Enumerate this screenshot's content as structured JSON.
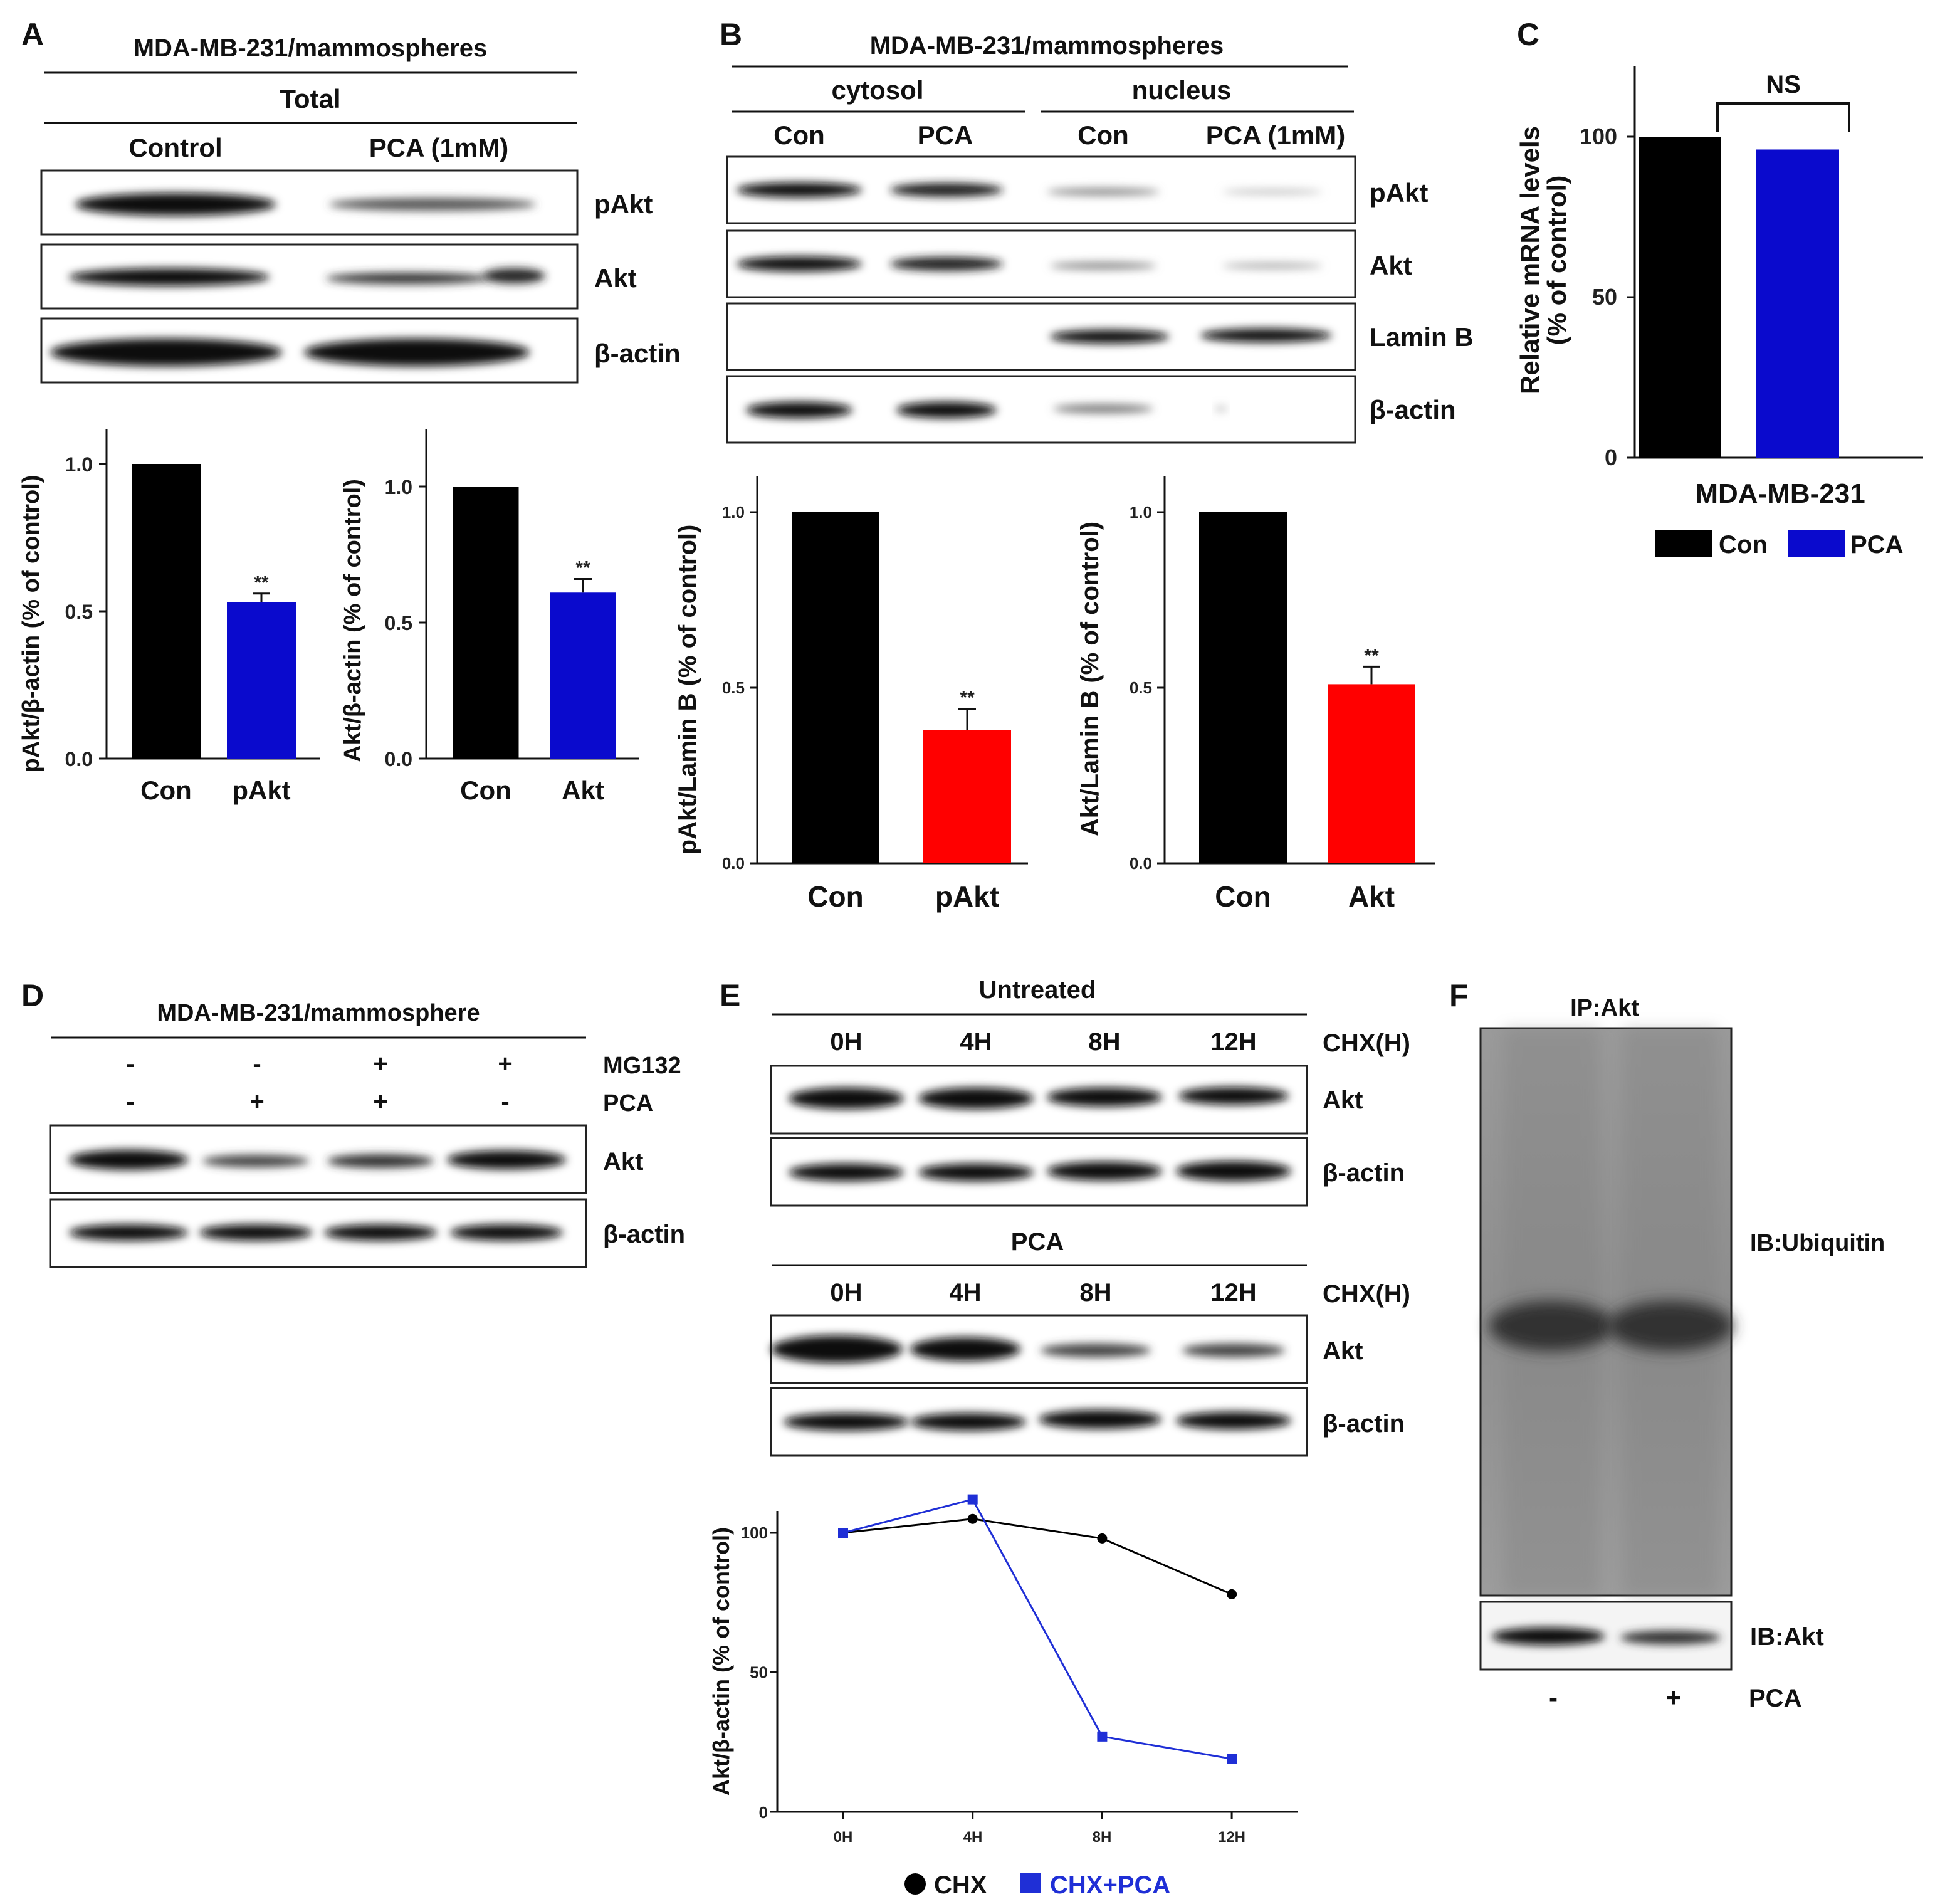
{
  "panel_letters": {
    "a": "A",
    "b": "B",
    "c": "C",
    "d": "D",
    "e": "E",
    "f": "F"
  },
  "colors": {
    "black": "#000000",
    "blue": "#0a0acd",
    "red": "#ff0000",
    "line_blue": "#1f2fd6"
  },
  "panelA": {
    "title": "MDA-MB-231/mammospheres",
    "subtitle": "Total",
    "lanes": [
      "Control",
      "PCA (1mM)"
    ],
    "blot_labels": [
      "pAkt",
      "Akt",
      "β-actin"
    ],
    "chart1": {
      "ylabel": "pAkt/β-actin (% of control)",
      "categories": [
        "Con",
        "pAkt"
      ],
      "yticks": [
        "0.0",
        "0.5",
        "1.0"
      ],
      "sig": "**"
    },
    "chart2": {
      "ylabel": "Akt/β-actin (% of control)",
      "categories": [
        "Con",
        "Akt"
      ],
      "yticks": [
        "0.0",
        "0.5",
        "1.0"
      ],
      "sig": "**"
    }
  },
  "panelB": {
    "title": "MDA-MB-231/mammospheres",
    "fractions": [
      "cytosol",
      "nucleus"
    ],
    "lanes": [
      "Con",
      "PCA",
      "Con",
      "PCA (1mM)"
    ],
    "blot_labels": [
      "pAkt",
      "Akt",
      "Lamin B",
      "β-actin"
    ],
    "chart1": {
      "ylabel": "pAkt/Lamin B (% of control)",
      "categories": [
        "Con",
        "pAkt"
      ],
      "yticks": [
        "0.0",
        "0.5",
        "1.0"
      ],
      "sig": "**"
    },
    "chart2": {
      "ylabel": "Akt/Lamin B (% of control)",
      "categories": [
        "Con",
        "Akt"
      ],
      "yticks": [
        "0.0",
        "0.5",
        "1.0"
      ],
      "sig": "**"
    }
  },
  "panelC": {
    "ylabel1": "Relative mRNA levels",
    "ylabel2": "(% of control)",
    "xlabel": "MDA-MB-231",
    "yticks": [
      "0",
      "50",
      "100"
    ],
    "sig": "NS",
    "legend": [
      "Con",
      "PCA"
    ]
  },
  "panelD": {
    "title": "MDA-MB-231/mammosphere",
    "row_labels": [
      "MG132",
      "PCA"
    ],
    "mg132": [
      "-",
      "-",
      "+",
      "+"
    ],
    "pca": [
      "-",
      "+",
      "+",
      "-"
    ],
    "blot_labels": [
      "Akt",
      "β-actin"
    ]
  },
  "panelE": {
    "group1": "Untreated",
    "group2": "PCA",
    "timepoints": [
      "0H",
      "4H",
      "8H",
      "12H"
    ],
    "chx_label": "CHX(H)",
    "blot_labels": [
      "Akt",
      "β-actin"
    ],
    "line": {
      "ylabel": "Akt/β-actin (% of control)",
      "yticks": [
        "0",
        "50",
        "100"
      ],
      "legend": [
        "CHX",
        "CHX+PCA"
      ]
    }
  },
  "panelF": {
    "ip_label": "IP:Akt",
    "ib1": "IB:Ubiquitin",
    "ib2": "IB:Akt",
    "signs": [
      "-",
      "+"
    ],
    "treat": "PCA"
  },
  "chart_data": [
    {
      "type": "bar",
      "categories": [
        "Con",
        "pAkt"
      ],
      "values": [
        1.0,
        0.53
      ],
      "errors": [
        0,
        0.03
      ],
      "ylabel": "pAkt/β-actin (% of control)",
      "ylim": [
        0,
        1.1
      ]
    },
    {
      "type": "bar",
      "categories": [
        "Con",
        "Akt"
      ],
      "values": [
        1.0,
        0.61
      ],
      "errors": [
        0,
        0.05
      ],
      "ylabel": "Akt/β-actin (% of control)",
      "ylim": [
        0,
        1.1
      ]
    },
    {
      "type": "bar",
      "categories": [
        "Con",
        "pAkt"
      ],
      "values": [
        1.0,
        0.38
      ],
      "errors": [
        0,
        0.06
      ],
      "ylabel": "pAkt/Lamin B (% of control)",
      "ylim": [
        0,
        1.1
      ]
    },
    {
      "type": "bar",
      "categories": [
        "Con",
        "Akt"
      ],
      "values": [
        1.0,
        0.51
      ],
      "errors": [
        0,
        0.05
      ],
      "ylabel": "Akt/Lamin B (% of control)",
      "ylim": [
        0,
        1.1
      ]
    },
    {
      "type": "bar",
      "categories": [
        "Con",
        "PCA"
      ],
      "values": [
        100,
        96
      ],
      "errors": [
        0,
        0.5
      ],
      "ylabel": "Relative mRNA levels (% of control)",
      "xlabel": "MDA-MB-231",
      "ylim": [
        0,
        120
      ]
    },
    {
      "type": "line",
      "x": [
        "0H",
        "4H",
        "8H",
        "12H"
      ],
      "series": [
        {
          "name": "CHX",
          "values": [
            100,
            105,
            98,
            78
          ]
        },
        {
          "name": "CHX+PCA",
          "values": [
            100,
            112,
            27,
            19
          ]
        }
      ],
      "ylabel": "Akt/β-actin (% of control)",
      "ylim": [
        0,
        125
      ]
    }
  ]
}
